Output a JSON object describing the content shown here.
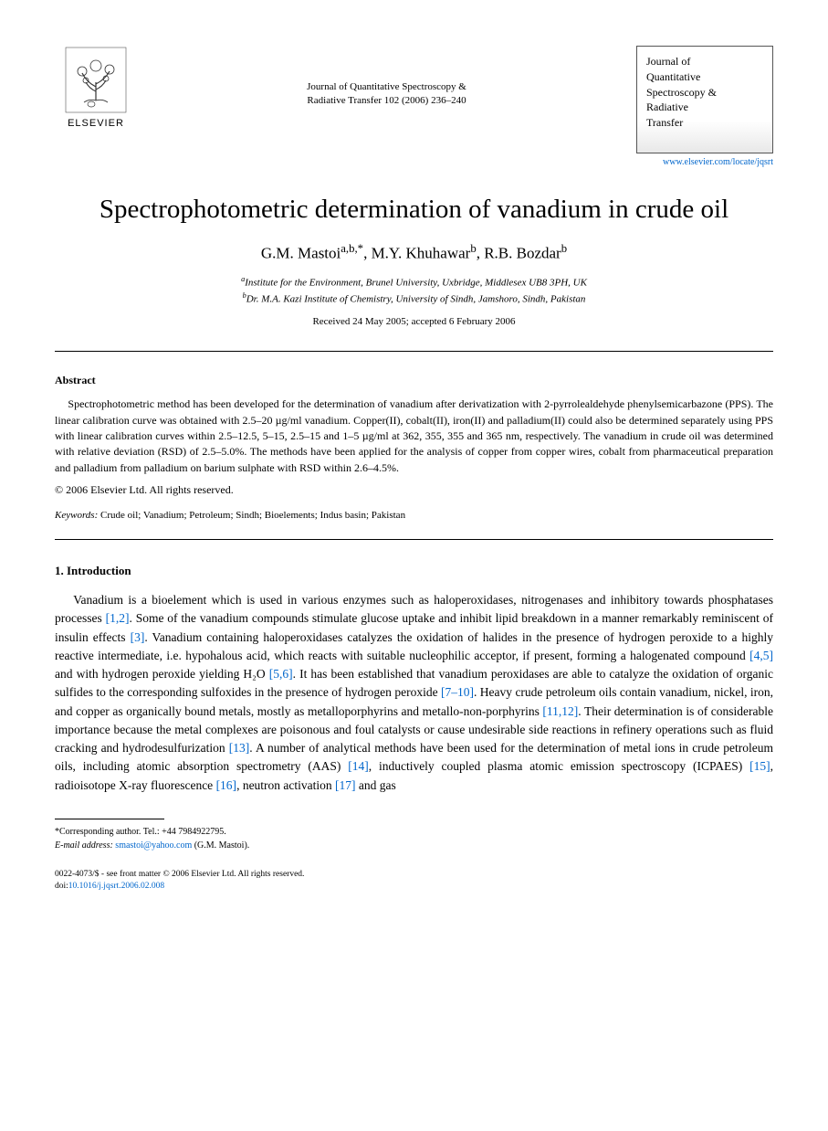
{
  "header": {
    "publisher_label": "ELSEVIER",
    "journal_center_line1": "Journal of Quantitative Spectroscopy &",
    "journal_center_line2": "Radiative Transfer 102 (2006) 236–240",
    "journal_box_line1": "Journal of",
    "journal_box_line2": "Quantitative",
    "journal_box_line3": "Spectroscopy &",
    "journal_box_line4": "Radiative",
    "journal_box_line5": "Transfer",
    "journal_link": "www.elsevier.com/locate/jqsrt"
  },
  "title": "Spectrophotometric determination of vanadium in crude oil",
  "authors_html": "G.M. Mastoi<sup>a,b,*</sup>, M.Y. Khuhawar<sup>b</sup>, R.B. Bozdar<sup>b</sup>",
  "affiliations": {
    "a": "Institute for the Environment, Brunel University, Uxbridge, Middlesex UB8 3PH, UK",
    "b": "Dr. M.A. Kazi Institute of Chemistry, University of Sindh, Jamshoro, Sindh, Pakistan"
  },
  "received": "Received 24 May 2005; accepted 6 February 2006",
  "abstract": {
    "heading": "Abstract",
    "body": "Spectrophotometric method has been developed for the determination of vanadium after derivatization with 2-pyrrolealdehyde phenylsemicarbazone (PPS). The linear calibration curve was obtained with 2.5–20 µg/ml vanadium. Copper(II), cobalt(II), iron(II) and palladium(II) could also be determined separately using PPS with linear calibration curves within 2.5–12.5, 5–15, 2.5–15 and 1–5 µg/ml at 362, 355, 355 and 365 nm, respectively. The vanadium in crude oil was determined with relative deviation (RSD) of 2.5–5.0%. The methods have been applied for the analysis of copper from copper wires, cobalt from pharmaceutical preparation and palladium from palladium on barium sulphate with RSD within 2.6–4.5%.",
    "copyright": "© 2006 Elsevier Ltd. All rights reserved."
  },
  "keywords": {
    "label": "Keywords:",
    "text": " Crude oil; Vanadium; Petroleum; Sindh; Bioelements; Indus basin; Pakistan"
  },
  "section1": {
    "heading": "1.  Introduction",
    "p1_a": "Vanadium is a bioelement which is used in various enzymes such as haloperoxidases, nitrogenases and inhibitory towards phosphatases processes ",
    "r1": "[1,2]",
    "p1_b": ". Some of the vanadium compounds stimulate glucose uptake and inhibit lipid breakdown in a manner remarkably reminiscent of insulin effects ",
    "r2": "[3]",
    "p1_c": ". Vanadium containing haloperoxidases catalyzes the oxidation of halides in the presence of hydrogen peroxide to a highly reactive intermediate, i.e. hypohalous acid, which reacts with suitable nucleophilic acceptor, if present, forming a halogenated compound ",
    "r3": "[4,5]",
    "p1_d": " and with hydrogen peroxide yielding H₂O ",
    "r4": "[5,6]",
    "p1_e": ". It has been established that vanadium peroxidases are able to catalyze the oxidation of organic sulfides to the corresponding sulfoxides in the presence of hydrogen peroxide ",
    "r5": "[7–10]",
    "p1_f": ". Heavy crude petroleum oils contain vanadium, nickel, iron, and copper as organically bound metals, mostly as metalloporphyrins and metallo-non-porphyrins ",
    "r6": "[11,12]",
    "p1_g": ". Their determination is of considerable importance because the metal complexes are poisonous and foul catalysts or cause undesirable side reactions in refinery operations such as fluid cracking and hydrodesulfurization ",
    "r7": "[13]",
    "p1_h": ". A number of analytical methods have been used for the determination of metal ions in crude petroleum oils, including atomic absorption spectrometry (AAS) ",
    "r8": "[14]",
    "p1_i": ", inductively coupled plasma atomic emission spectroscopy (ICPAES) ",
    "r9": "[15]",
    "p1_j": ", radioisotope X-ray fluorescence ",
    "r10": "[16]",
    "p1_k": ", neutron activation ",
    "r11": "[17]",
    "p1_l": " and gas"
  },
  "footnote": {
    "corr": "*Corresponding author. Tel.: +44 7984922795.",
    "email_label": "E-mail address:",
    "email": "smastoi@yahoo.com",
    "email_tail": " (G.M. Mastoi)."
  },
  "bottom": {
    "line1": "0022-4073/$ - see front matter © 2006 Elsevier Ltd. All rights reserved.",
    "doi_label": "doi:",
    "doi": "10.1016/j.jqsrt.2006.02.008"
  },
  "colors": {
    "link": "#0066cc",
    "text": "#000000",
    "bg": "#ffffff"
  }
}
